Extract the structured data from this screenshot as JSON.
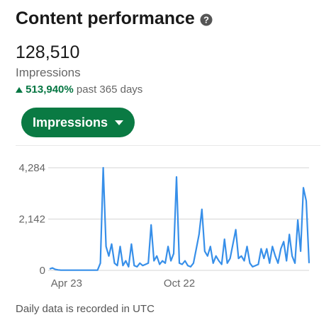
{
  "header": {
    "title": "Content performance",
    "total": "128,510",
    "metric": "Impressions",
    "change": "513,940%",
    "period": "past 365 days",
    "button": "Impressions"
  },
  "footer": "Daily data is recorded in UTC",
  "chart_data": {
    "type": "line",
    "color": "#378fe9",
    "grid": true,
    "categories": [
      null,
      null,
      null,
      null,
      null,
      null,
      "Apr 23",
      null,
      null,
      null,
      null,
      null,
      null,
      null,
      null,
      null,
      null,
      null,
      null,
      null,
      null,
      null,
      null,
      null,
      null,
      null,
      null,
      null,
      null,
      null,
      null,
      null,
      null,
      null,
      null,
      null,
      null,
      null,
      null,
      null,
      null,
      null,
      null,
      null,
      null,
      null,
      "Oct 22",
      null,
      null,
      null,
      null,
      null,
      null,
      null,
      null,
      null,
      null,
      null,
      null,
      null,
      null,
      null,
      null,
      null,
      null,
      null,
      null,
      null,
      null,
      null,
      null,
      null,
      null,
      null,
      null,
      null,
      null,
      null,
      null,
      null,
      null,
      null,
      null,
      null,
      null,
      null,
      null,
      null,
      null,
      null,
      null,
      null,
      null
    ],
    "values": [
      60,
      100,
      40,
      20,
      10,
      10,
      10,
      10,
      10,
      10,
      10,
      10,
      10,
      10,
      10,
      10,
      10,
      10,
      300,
      4284,
      1000,
      600,
      1100,
      300,
      200,
      1000,
      200,
      400,
      150,
      1100,
      200,
      150,
      300,
      200,
      250,
      300,
      1900,
      400,
      600,
      250,
      400,
      300,
      1000,
      400,
      700,
      3900,
      300,
      250,
      400,
      200,
      150,
      300,
      900,
      1500,
      2550,
      800,
      600,
      1000,
      300,
      600,
      400,
      250,
      1300,
      300,
      500,
      1100,
      1700,
      500,
      600,
      400,
      1000,
      300,
      150,
      200,
      250,
      900,
      500,
      900,
      300,
      1000,
      600,
      300,
      900,
      1200,
      400,
      1500,
      600,
      300,
      2100,
      800,
      3450,
      2900,
      300
    ],
    "ylim": [
      0,
      4284
    ],
    "yticks": [
      0,
      {
        "value": 2142,
        "label": "2,142"
      },
      {
        "value": 4284,
        "label": "4,284"
      }
    ]
  }
}
